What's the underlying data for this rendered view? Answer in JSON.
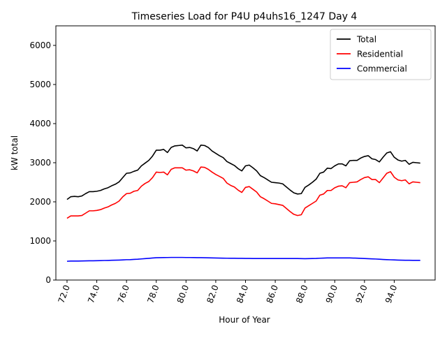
{
  "chart_data": {
    "type": "line",
    "title": "Timeseries Load for P4U p4uhs16_1247  Day 4",
    "xlabel": "Hour of Year",
    "ylabel": "kW total",
    "xlim": [
      71.25,
      96.75
    ],
    "ylim": [
      0,
      6500
    ],
    "x_ticks": [
      "72.0",
      "74.0",
      "76.0",
      "78.0",
      "80.0",
      "82.0",
      "84.0",
      "86.0",
      "88.0",
      "90.0",
      "92.0",
      "94.0"
    ],
    "y_ticks": [
      "0",
      "1000",
      "2000",
      "3000",
      "4000",
      "5000",
      "6000"
    ],
    "grid": false,
    "legend_position": "top-right",
    "x": [
      72.0,
      72.25,
      72.5,
      72.75,
      73.0,
      73.25,
      73.5,
      73.75,
      74.0,
      74.25,
      74.5,
      74.75,
      75.0,
      75.25,
      75.5,
      75.75,
      76.0,
      76.25,
      76.5,
      76.75,
      77.0,
      77.25,
      77.5,
      77.75,
      78.0,
      78.25,
      78.5,
      78.75,
      79.0,
      79.25,
      79.5,
      79.75,
      80.0,
      80.25,
      80.5,
      80.75,
      81.0,
      81.25,
      81.5,
      81.75,
      82.0,
      82.25,
      82.5,
      82.75,
      83.0,
      83.25,
      83.5,
      83.75,
      84.0,
      84.25,
      84.5,
      84.75,
      85.0,
      85.25,
      85.5,
      85.75,
      86.0,
      86.25,
      86.5,
      86.75,
      87.0,
      87.25,
      87.5,
      87.75,
      88.0,
      88.25,
      88.5,
      88.75,
      89.0,
      89.25,
      89.5,
      89.75,
      90.0,
      90.25,
      90.5,
      90.75,
      91.0,
      91.25,
      91.5,
      91.75,
      92.0,
      92.25,
      92.5,
      92.75,
      93.0,
      93.25,
      93.5,
      93.75,
      94.0,
      94.25,
      94.5,
      94.75,
      95.0,
      95.25,
      95.5,
      95.75
    ],
    "series": [
      {
        "name": "Total",
        "color": "#000000",
        "values": [
          2060,
          2130,
          2140,
          2130,
          2150,
          2210,
          2260,
          2260,
          2270,
          2290,
          2330,
          2360,
          2410,
          2450,
          2510,
          2620,
          2730,
          2740,
          2780,
          2810,
          2920,
          2990,
          3060,
          3170,
          3320,
          3320,
          3340,
          3260,
          3390,
          3430,
          3440,
          3450,
          3380,
          3390,
          3360,
          3300,
          3450,
          3440,
          3390,
          3300,
          3240,
          3180,
          3130,
          3030,
          2980,
          2930,
          2850,
          2790,
          2920,
          2940,
          2870,
          2790,
          2670,
          2620,
          2560,
          2500,
          2490,
          2480,
          2460,
          2380,
          2300,
          2230,
          2200,
          2210,
          2370,
          2430,
          2500,
          2580,
          2730,
          2760,
          2860,
          2850,
          2920,
          2970,
          2970,
          2920,
          3050,
          3060,
          3060,
          3120,
          3160,
          3180,
          3100,
          3080,
          3020,
          3140,
          3250,
          3280,
          3140,
          3070,
          3040,
          3060,
          2960,
          3010,
          3000,
          2990
        ]
      },
      {
        "name": "Residential",
        "color": "#ff0000",
        "values": [
          1580,
          1640,
          1640,
          1640,
          1650,
          1710,
          1770,
          1770,
          1780,
          1800,
          1840,
          1870,
          1920,
          1960,
          2020,
          2130,
          2210,
          2220,
          2270,
          2290,
          2400,
          2470,
          2520,
          2620,
          2760,
          2750,
          2760,
          2690,
          2830,
          2870,
          2870,
          2870,
          2810,
          2820,
          2790,
          2740,
          2890,
          2880,
          2830,
          2760,
          2700,
          2650,
          2600,
          2480,
          2420,
          2380,
          2300,
          2240,
          2370,
          2390,
          2320,
          2250,
          2130,
          2080,
          2020,
          1960,
          1950,
          1930,
          1910,
          1830,
          1750,
          1680,
          1650,
          1670,
          1840,
          1900,
          1960,
          2020,
          2170,
          2200,
          2290,
          2290,
          2360,
          2400,
          2410,
          2360,
          2490,
          2500,
          2510,
          2570,
          2620,
          2640,
          2570,
          2570,
          2490,
          2610,
          2730,
          2770,
          2630,
          2560,
          2540,
          2560,
          2460,
          2510,
          2500,
          2490
        ]
      },
      {
        "name": "Commercial",
        "color": "#0000ff",
        "values": [
          480,
          485,
          485,
          485,
          488,
          490,
          492,
          493,
          495,
          497,
          500,
          502,
          505,
          507,
          510,
          515,
          520,
          522,
          528,
          532,
          540,
          548,
          555,
          563,
          570,
          572,
          575,
          576,
          578,
          578,
          578,
          578,
          576,
          576,
          575,
          573,
          572,
          570,
          568,
          566,
          564,
          562,
          560,
          558,
          557,
          556,
          555,
          554,
          553,
          552,
          551,
          550,
          550,
          550,
          550,
          550,
          550,
          550,
          550,
          550,
          550,
          550,
          550,
          548,
          546,
          548,
          550,
          552,
          558,
          562,
          566,
          566,
          566,
          566,
          566,
          566,
          566,
          562,
          560,
          555,
          550,
          546,
          542,
          538,
          532,
          526,
          522,
          518,
          514,
          510,
          508,
          506,
          505,
          504,
          503,
          503
        ]
      }
    ]
  }
}
